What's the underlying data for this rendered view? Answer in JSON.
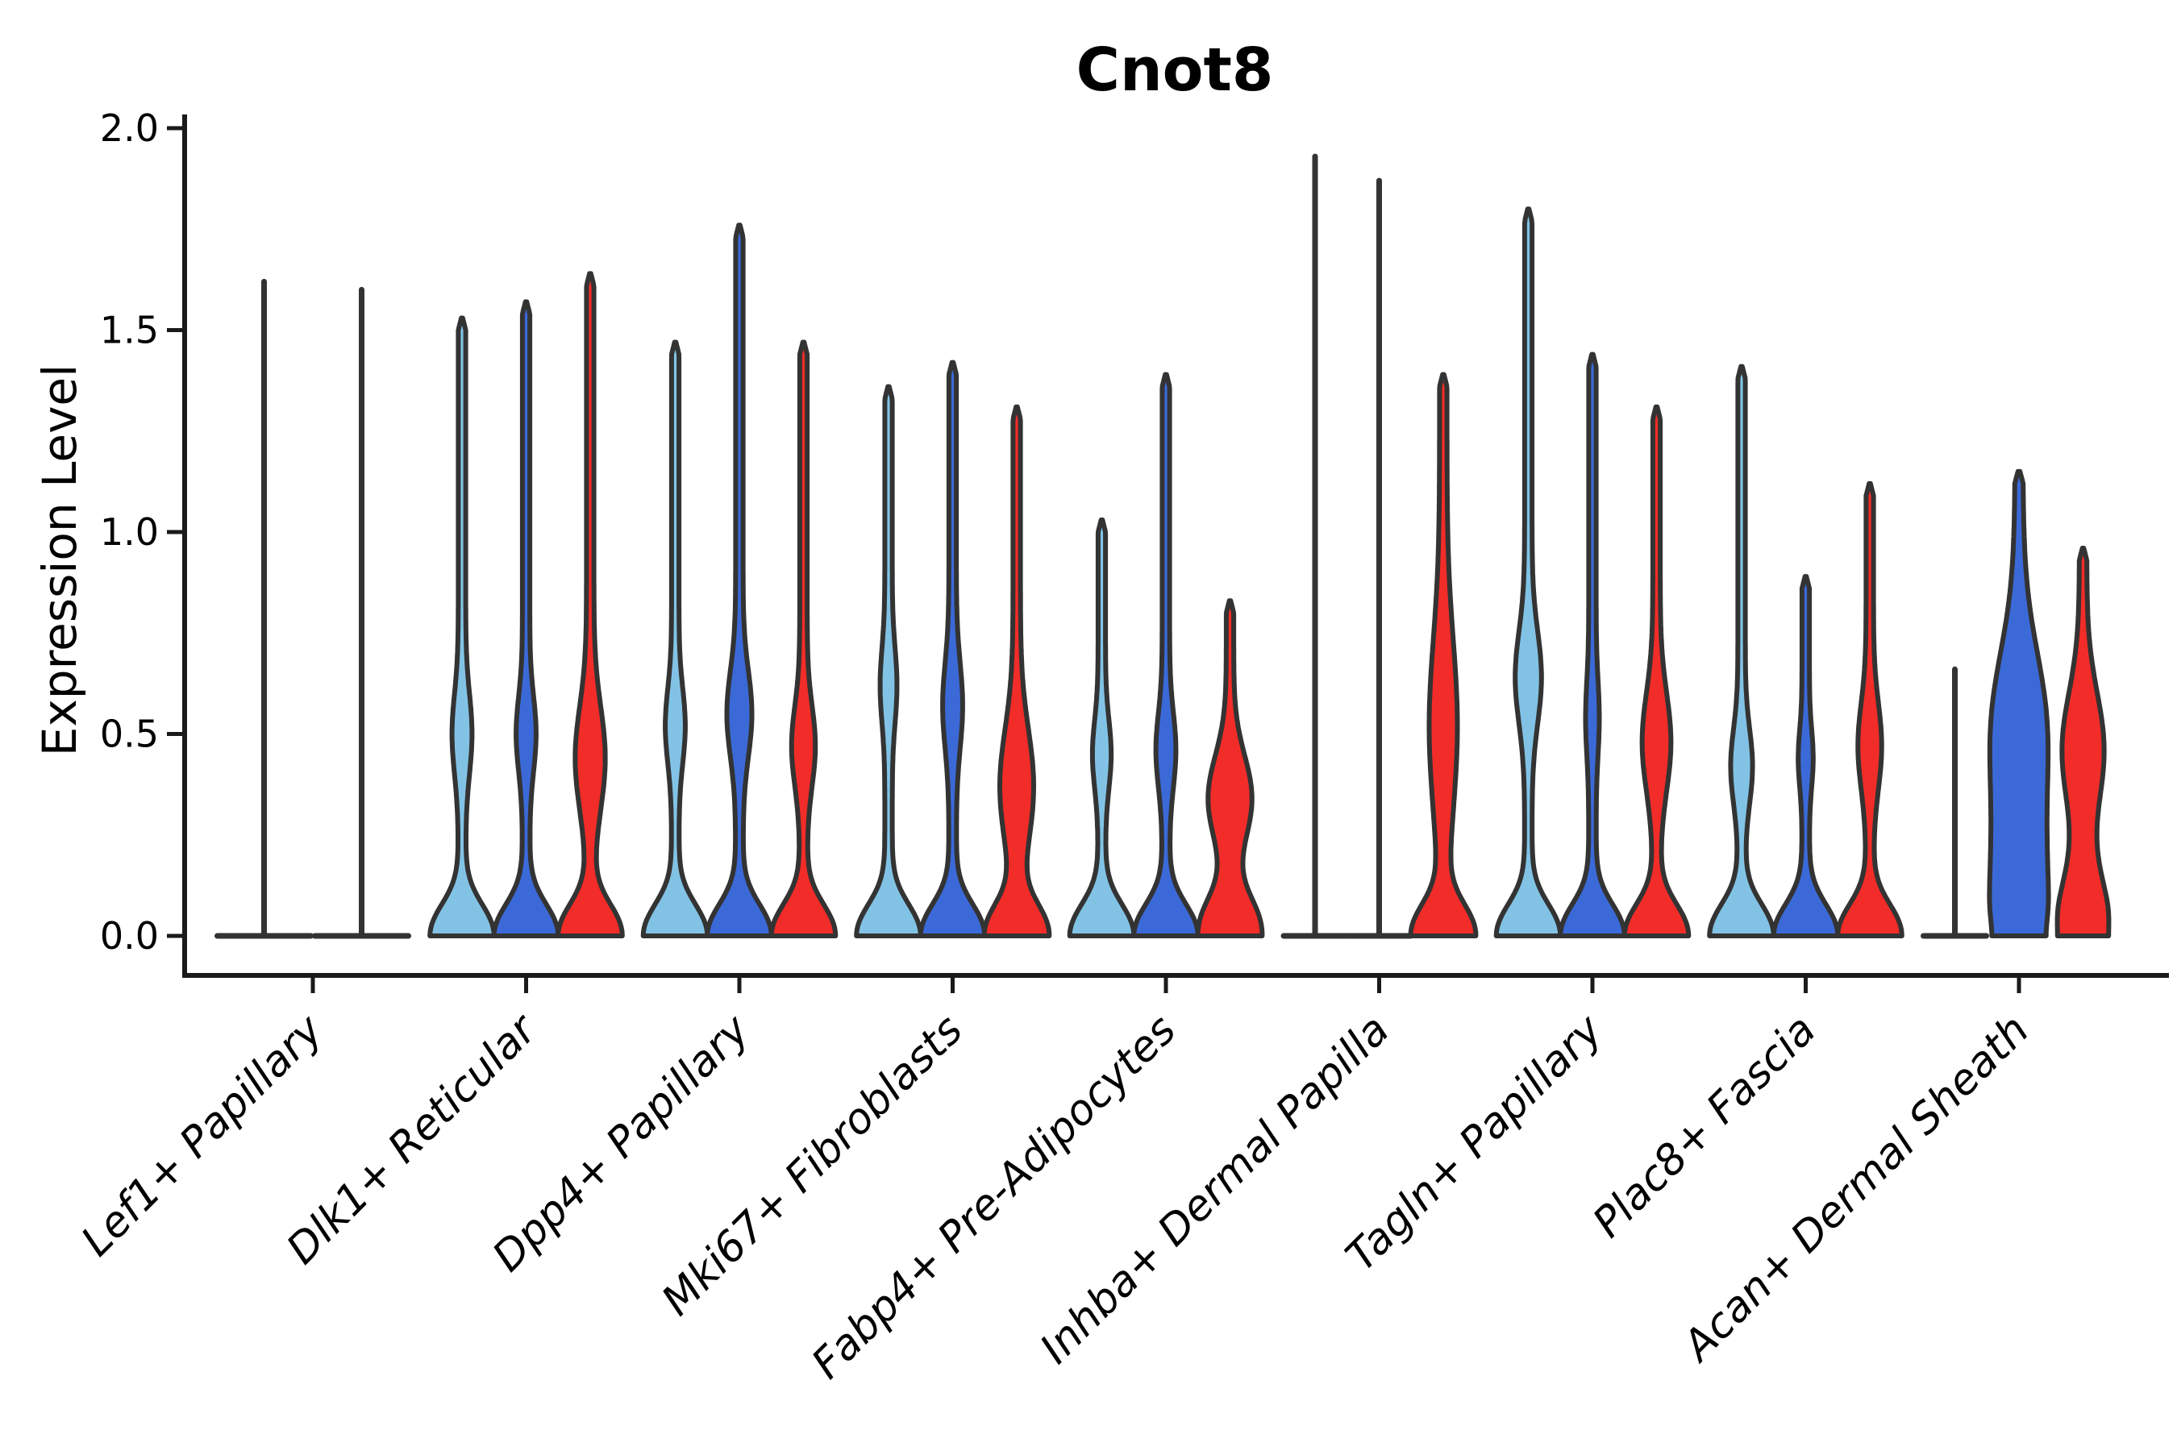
{
  "title": "Cnot8",
  "axes": {
    "ylabel": "Expression Level",
    "yticks": [
      {
        "label": "0.0",
        "value": 0.0
      },
      {
        "label": "0.5",
        "value": 0.5
      },
      {
        "label": "1.0",
        "value": 1.0
      },
      {
        "label": "1.5",
        "value": 1.5
      },
      {
        "label": "2.0",
        "value": 2.0
      }
    ]
  },
  "palette": {
    "series_names": [
      "light-blue",
      "dark-blue",
      "red"
    ],
    "series_fill": [
      "#82C3E5",
      "#3B6AD8",
      "#F22C28"
    ],
    "violin_outline": "#333333",
    "axis_color": "#1a1a1a",
    "background": "#ffffff"
  },
  "chart_data": {
    "type": "violin",
    "title": "Cnot8",
    "ylabel": "Expression Level",
    "ylim": [
      -0.1,
      2.05
    ],
    "yticks": [
      0.0,
      0.5,
      1.0,
      1.5,
      2.0
    ],
    "legend": "none",
    "series": [
      "light-blue",
      "dark-blue",
      "red"
    ],
    "note": "Grouped violin plot of Cnot8 expression per cell type; 3 condition violins per group (2 in Lef1+ Papillary, red absent). max = top of distribution tail in expression units; bulge c/s/w = center, spread, relative half-width of mid-distribution bulge; base/bd = relative half-width and decay of zero-expression base; type spike = distribution collapsed at 0 (flat base line + thin tail only).",
    "groups": [
      {
        "category": "Lef1+ Papillary",
        "violins": [
          {
            "series": "light-blue",
            "type": "spike",
            "max": 1.62
          },
          {
            "series": "dark-blue",
            "type": "spike",
            "max": 1.6
          }
        ]
      },
      {
        "category": "Dlk1+ Reticular",
        "violins": [
          {
            "series": "light-blue",
            "type": "violin",
            "max": 1.53,
            "bulge": {
              "c": 0.5,
              "s": 0.14,
              "w": 0.2
            }
          },
          {
            "series": "dark-blue",
            "type": "violin",
            "max": 1.57,
            "bulge": {
              "c": 0.5,
              "s": 0.13,
              "w": 0.2
            }
          },
          {
            "series": "red",
            "type": "violin",
            "max": 1.64,
            "bulge": {
              "c": 0.44,
              "s": 0.18,
              "w": 0.36
            }
          }
        ]
      },
      {
        "category": "Dpp4+ Papillary",
        "violins": [
          {
            "series": "light-blue",
            "type": "violin",
            "max": 1.47,
            "bulge": {
              "c": 0.52,
              "s": 0.13,
              "w": 0.2
            }
          },
          {
            "series": "dark-blue",
            "type": "violin",
            "max": 1.76,
            "bulge": {
              "c": 0.55,
              "s": 0.15,
              "w": 0.28
            }
          },
          {
            "series": "red",
            "type": "violin",
            "max": 1.47,
            "bulge": {
              "c": 0.47,
              "s": 0.14,
              "w": 0.26
            }
          }
        ]
      },
      {
        "category": "Mki67+ Fibroblasts",
        "violins": [
          {
            "series": "light-blue",
            "type": "violin",
            "max": 1.36,
            "bulge": {
              "c": 0.62,
              "s": 0.13,
              "w": 0.15
            }
          },
          {
            "series": "dark-blue",
            "type": "violin",
            "max": 1.42,
            "bulge": {
              "c": 0.57,
              "s": 0.15,
              "w": 0.2
            }
          },
          {
            "series": "red",
            "type": "violin",
            "max": 1.31,
            "bulge": {
              "c": 0.37,
              "s": 0.2,
              "w": 0.42
            }
          }
        ]
      },
      {
        "category": "Fabp4+ Pre-Adipocytes",
        "violins": [
          {
            "series": "light-blue",
            "type": "violin",
            "max": 1.03,
            "bulge": {
              "c": 0.45,
              "s": 0.12,
              "w": 0.18
            }
          },
          {
            "series": "dark-blue",
            "type": "violin",
            "max": 1.39,
            "bulge": {
              "c": 0.46,
              "s": 0.13,
              "w": 0.2
            }
          },
          {
            "series": "red",
            "type": "violin",
            "max": 0.83,
            "bd": 0.12,
            "bulge": {
              "c": 0.34,
              "s": 0.15,
              "w": 0.58
            }
          }
        ]
      },
      {
        "category": "Inhba+ Dermal Papilla",
        "violins": [
          {
            "series": "light-blue",
            "type": "spike",
            "max": 1.93
          },
          {
            "series": "dark-blue",
            "type": "spike",
            "max": 1.87
          },
          {
            "series": "red",
            "type": "violin",
            "max": 1.39,
            "bulge": {
              "c": 0.52,
              "s": 0.3,
              "w": 0.33
            }
          }
        ]
      },
      {
        "category": "Tagln+ Papillary",
        "violins": [
          {
            "series": "light-blue",
            "type": "violin",
            "max": 1.8,
            "bulge": {
              "c": 0.64,
              "s": 0.16,
              "w": 0.3
            }
          },
          {
            "series": "dark-blue",
            "type": "violin",
            "max": 1.44,
            "bulge": {
              "c": 0.54,
              "s": 0.13,
              "w": 0.1
            }
          },
          {
            "series": "red",
            "type": "violin",
            "max": 1.31,
            "bulge": {
              "c": 0.48,
              "s": 0.17,
              "w": 0.34
            }
          }
        ]
      },
      {
        "category": "Plac8+ Fascia",
        "violins": [
          {
            "series": "light-blue",
            "type": "violin",
            "max": 1.41,
            "bulge": {
              "c": 0.42,
              "s": 0.13,
              "w": 0.23
            }
          },
          {
            "series": "dark-blue",
            "type": "violin",
            "max": 0.89,
            "bulge": {
              "c": 0.44,
              "s": 0.1,
              "w": 0.12
            }
          },
          {
            "series": "red",
            "type": "violin",
            "max": 1.12,
            "bulge": {
              "c": 0.47,
              "s": 0.15,
              "w": 0.26
            }
          }
        ]
      },
      {
        "category": "Acan+ Dermal Sheath",
        "violins": [
          {
            "series": "light-blue",
            "type": "spike",
            "max": 0.66
          },
          {
            "series": "dark-blue",
            "type": "violin",
            "max": 1.15,
            "base": 0.84,
            "bd": 0.55,
            "bulge": {
              "c": 0.55,
              "s": 0.24,
              "w": 0.45
            }
          },
          {
            "series": "red",
            "type": "violin",
            "max": 0.96,
            "base": 0.79,
            "bd": 0.19,
            "bulge": {
              "c": 0.46,
              "s": 0.2,
              "w": 0.55
            }
          }
        ]
      }
    ]
  }
}
